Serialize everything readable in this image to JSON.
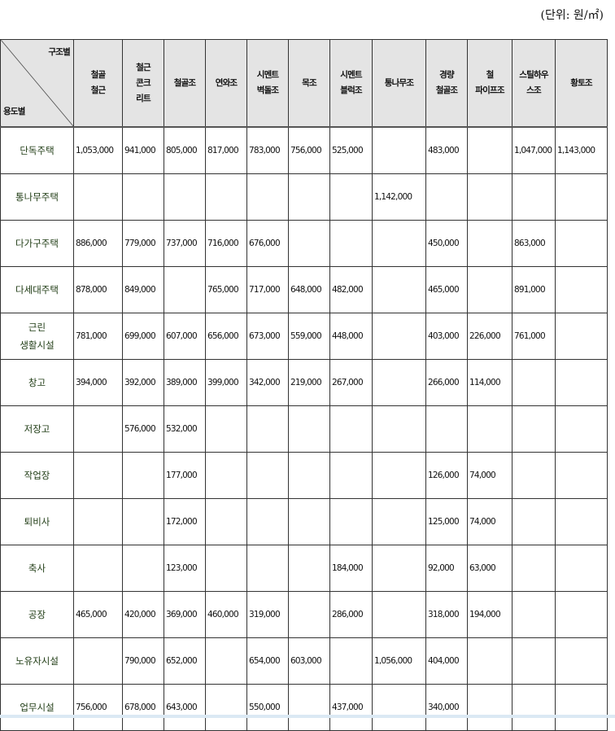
{
  "unit_label": "(단위: 원/㎡)",
  "corner": {
    "top": "구조별",
    "bottom": "용도별"
  },
  "columns": [
    "철골\n철근",
    "철근\n콘크\n리트",
    "철골조",
    "연와조",
    "시멘트\n벽돌조",
    "목조",
    "시멘트\n블럭조",
    "통나무조",
    "경량\n철골조",
    "철\n파이프조",
    "스틸하우\n스조",
    "황토조"
  ],
  "rows": [
    {
      "label": "단독주택",
      "values": [
        "1,053,000",
        "941,000",
        "805,000",
        "817,000",
        "783,000",
        "756,000",
        "525,000",
        "",
        "483,000",
        "",
        "1,047,000",
        "1,143,000"
      ]
    },
    {
      "label": "통나무주택",
      "values": [
        "",
        "",
        "",
        "",
        "",
        "",
        "",
        "1,142,000",
        "",
        "",
        "",
        ""
      ]
    },
    {
      "label": "다가구주택",
      "values": [
        "886,000",
        "779,000",
        "737,000",
        "716,000",
        "676,000",
        "",
        "",
        "",
        "450,000",
        "",
        "863,000",
        ""
      ]
    },
    {
      "label": "다세대주택",
      "values": [
        "878,000",
        "849,000",
        "",
        "765,000",
        "717,000",
        "648,000",
        "482,000",
        "",
        "465,000",
        "",
        "891,000",
        ""
      ]
    },
    {
      "label": "근린\n생활시설",
      "values": [
        "781,000",
        "699,000",
        "607,000",
        "656,000",
        "673,000",
        "559,000",
        "448,000",
        "",
        "403,000",
        "226,000",
        "761,000",
        ""
      ]
    },
    {
      "label": "창고",
      "values": [
        "394,000",
        "392,000",
        "389,000",
        "399,000",
        "342,000",
        "219,000",
        "267,000",
        "",
        "266,000",
        "114,000",
        "",
        ""
      ]
    },
    {
      "label": "저장고",
      "values": [
        "",
        "576,000",
        "532,000",
        "",
        "",
        "",
        "",
        "",
        "",
        "",
        "",
        ""
      ]
    },
    {
      "label": "작업장",
      "values": [
        "",
        "",
        "177,000",
        "",
        "",
        "",
        "",
        "",
        "126,000",
        "74,000",
        "",
        ""
      ]
    },
    {
      "label": "퇴비사",
      "values": [
        "",
        "",
        "172,000",
        "",
        "",
        "",
        "",
        "",
        "125,000",
        "74,000",
        "",
        ""
      ]
    },
    {
      "label": "축사",
      "values": [
        "",
        "",
        "123,000",
        "",
        "",
        "",
        "184,000",
        "",
        "92,000",
        "63,000",
        "",
        ""
      ]
    },
    {
      "label": "공장",
      "values": [
        "465,000",
        "420,000",
        "369,000",
        "460,000",
        "319,000",
        "",
        "286,000",
        "",
        "318,000",
        "194,000",
        "",
        ""
      ]
    },
    {
      "label": "노유자시설",
      "values": [
        "",
        "790,000",
        "652,000",
        "",
        "654,000",
        "603,000",
        "",
        "1,056,000",
        "404,000",
        "",
        "",
        ""
      ]
    },
    {
      "label": "업무시설",
      "values": [
        "756,000",
        "678,000",
        "643,000",
        "",
        "550,000",
        "",
        "437,000",
        "",
        "340,000",
        "",
        "",
        ""
      ]
    }
  ]
}
